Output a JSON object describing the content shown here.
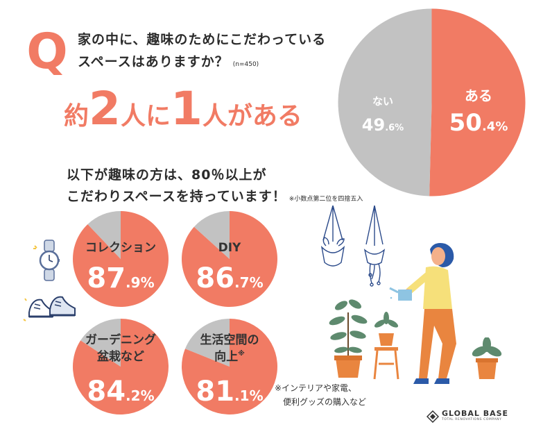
{
  "question": {
    "badge": "Q",
    "line1": "家の中に、趣味のためにこだわっている",
    "line2": "スペースはありますか？",
    "sample": "(n=450)"
  },
  "headline": {
    "part1": "約",
    "num1": "2",
    "part2": "人に",
    "num2": "1",
    "part3": "人がある"
  },
  "subheading": {
    "line1": "以下が趣味の方は、80％以上が",
    "line2": "こだわりスペースを持っています！",
    "rounding_note": "※小数点第二位を四捨五入"
  },
  "footnote": {
    "line1": "※インテリアや家電、",
    "line2": "便利グッズの購入など"
  },
  "logo": {
    "name": "GLOBAL BASE",
    "tagline": "TOTAL RENOVATIONS COMPANY"
  },
  "colors": {
    "accent": "#f17b64",
    "gray": "#c2c2c2",
    "text": "#2b2b2b"
  },
  "icons": [
    "wristwatch-icon",
    "sneakers-icon",
    "hanging-plant-icon",
    "potted-plant-icon",
    "person-watering-plants-icon"
  ],
  "chart_data": [
    {
      "type": "pie",
      "labels": [
        "ある",
        "ない"
      ],
      "values": [
        50.4,
        49.6
      ],
      "display": [
        {
          "label": "ある",
          "int": "50",
          "dec": ".4",
          "unit": "%"
        },
        {
          "label": "ない",
          "int": "49",
          "dec": ".6",
          "unit": "%"
        }
      ]
    },
    {
      "type": "pie",
      "label_lines": [
        "コレクション"
      ],
      "value": 87.9,
      "int": "87",
      "dec": ".9",
      "unit": "%"
    },
    {
      "type": "pie",
      "label_lines": [
        "DIY"
      ],
      "value": 86.7,
      "int": "86",
      "dec": ".7",
      "unit": "%"
    },
    {
      "type": "pie",
      "label_lines": [
        "ガーデニング",
        "盆栽など"
      ],
      "value": 84.2,
      "int": "84",
      "dec": ".2",
      "unit": "%"
    },
    {
      "type": "pie",
      "label_lines": [
        "生活空間の",
        "向上"
      ],
      "label_mark": "※",
      "value": 81.1,
      "int": "81",
      "dec": ".1",
      "unit": "%"
    }
  ]
}
